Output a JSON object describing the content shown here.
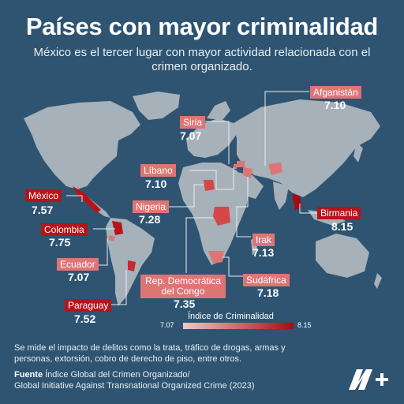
{
  "title": "Países con mayor criminalidad",
  "subtitle": "México es el tercer lugar con mayor actividad relacionada con el crimen organizado.",
  "countries": {
    "afganistan": {
      "name": "Afganistán",
      "value": "7.10"
    },
    "siria": {
      "name": "Siria",
      "value": "7.07"
    },
    "libano": {
      "name": "Líbano",
      "value": "7.10"
    },
    "mexico": {
      "name": "México",
      "value": "7.57"
    },
    "nigeria": {
      "name": "Nigeria",
      "value": "7.28"
    },
    "birmania": {
      "name": "Birmania",
      "value": "8.15"
    },
    "colombia": {
      "name": "Colombia",
      "value": "7.75"
    },
    "irak": {
      "name": "Irak",
      "value": "7.13"
    },
    "ecuador": {
      "name": "Ecuador",
      "value": "7.07"
    },
    "rdc": {
      "name_line1": "Rep. Democrática",
      "name_line2": "del Congo",
      "value": "7.35"
    },
    "sudafrica": {
      "name": "Sudáfrica",
      "value": "7.18"
    },
    "paraguay": {
      "name": "Paraguay",
      "value": "7.52"
    }
  },
  "legend": {
    "title": "Índice de Criminalidad",
    "min": "7.07",
    "max": "8.15"
  },
  "note": "Se mide el impacto de delitos como la trata, tráfico de drogas, armas y personas, extorsión, cobro de derecho de piso, entre otros.",
  "source": {
    "label": "Fuente",
    "text_line1": "Índice Global del Crimen Organizado/",
    "text_line2": "Global Initiative Against Transnational Organized Crime (2023)"
  },
  "logo": {
    "text": "N+"
  },
  "colors": {
    "background": "#2e5471",
    "land": "#a6b1b9",
    "highlight_light": "#de7575",
    "highlight_dark": "#b6141a"
  }
}
